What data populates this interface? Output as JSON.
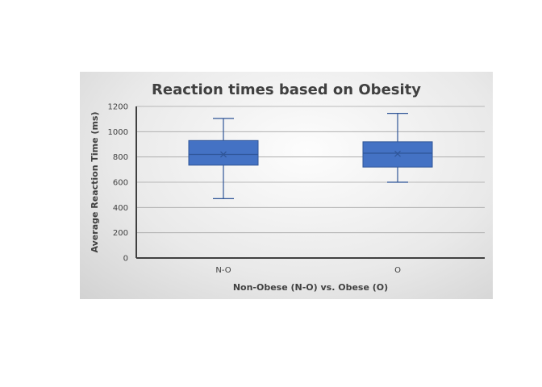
{
  "chart_data": {
    "type": "boxplot",
    "title": "Reaction times based on Obesity",
    "xlabel": "Non-Obese (N-O) vs. Obese (O)",
    "ylabel": "Average Reaction Time (ms)",
    "ylim": [
      0,
      1200
    ],
    "yticks": [
      "0",
      "200",
      "400",
      "600",
      "800",
      "1000",
      "1200"
    ],
    "grid": true,
    "categories": [
      "N-O",
      "O"
    ],
    "boxes": [
      {
        "category": "N-O",
        "min": 470,
        "q1": 735,
        "median": 820,
        "q3": 930,
        "max": 1105,
        "mean": 820
      },
      {
        "category": "O",
        "min": 600,
        "q1": 720,
        "median": 830,
        "q3": 920,
        "max": 1145,
        "mean": 825
      }
    ],
    "colors": {
      "box_fill": "#4472C4",
      "box_stroke": "#2F5597",
      "grid": "#a6a6a6",
      "axis": "#404040"
    }
  }
}
